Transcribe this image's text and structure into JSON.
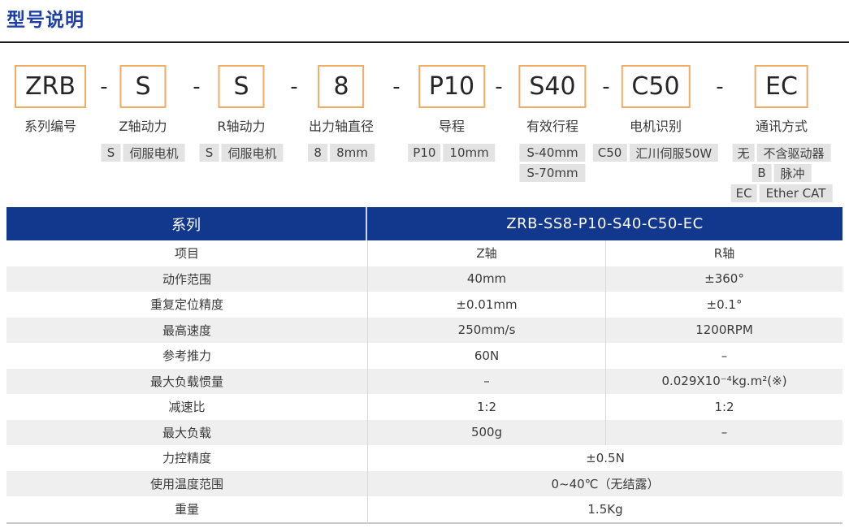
{
  "page": {
    "title": "型号说明"
  },
  "colors": {
    "title_blue": "#1C3FA8",
    "header_blue": "#12388E",
    "accent_orange": "#F0AC64",
    "badge_gray": "#E3E3E3",
    "stripe_gray": "#EFEFEF"
  },
  "model": {
    "separator": "-",
    "full_code": "ZRB-S-S-8-P10-S40-C50-EC",
    "segments": [
      {
        "code": "ZRB",
        "label": "系列编号",
        "options": []
      },
      {
        "code": "S",
        "label": "Z轴动力",
        "options": [
          {
            "code": "S",
            "value": "伺服电机"
          }
        ]
      },
      {
        "code": "S",
        "label": "R轴动力",
        "options": [
          {
            "code": "S",
            "value": "伺服电机"
          }
        ]
      },
      {
        "code": "8",
        "label": "出力轴直径",
        "options": [
          {
            "code": "8",
            "value": "8mm"
          }
        ]
      },
      {
        "code": "P10",
        "label": "导程",
        "options": [
          {
            "code": "P10",
            "value": "10mm"
          }
        ]
      },
      {
        "code": "S40",
        "label": "有效行程",
        "options": [
          {
            "code": "S-40mm",
            "value": ""
          },
          {
            "code": "S-70mm",
            "value": ""
          }
        ]
      },
      {
        "code": "C50",
        "label": "电机识别",
        "options": [
          {
            "code": "C50",
            "value": "汇川伺服50W"
          }
        ]
      },
      {
        "code": "EC",
        "label": "通讯方式",
        "options": [
          {
            "code": "无",
            "value": "不含驱动器"
          },
          {
            "code": "B",
            "value": "脉冲"
          },
          {
            "code": "EC",
            "value": "Ether CAT"
          }
        ]
      }
    ]
  },
  "table": {
    "header": {
      "series_label": "系列",
      "model_value": "ZRB-SS8-P10-S40-C50-EC"
    },
    "rows": [
      {
        "item": "项目",
        "z": "Z轴",
        "r": "R轴"
      },
      {
        "item": "动作范围",
        "z": "40mm",
        "r": "±360°"
      },
      {
        "item": "重复定位精度",
        "z": "±0.01mm",
        "r": "±0.1°"
      },
      {
        "item": "最高速度",
        "z": "250mm/s",
        "r": "1200RPM"
      },
      {
        "item": "参考推力",
        "z": "60N",
        "r": "–"
      },
      {
        "item": "最大负载惯量",
        "z": "–",
        "r": "0.029X10⁻⁴kg.m²(※)"
      },
      {
        "item": "减速比",
        "z": "1:2",
        "r": "1:2"
      },
      {
        "item": "最大负载",
        "z": "500g",
        "r": "–"
      },
      {
        "item": "力控精度",
        "span": "±0.5N"
      },
      {
        "item": "使用温度范围",
        "span": "0~40℃（无结露）"
      },
      {
        "item": "重量",
        "span": "1.5Kg"
      }
    ]
  }
}
